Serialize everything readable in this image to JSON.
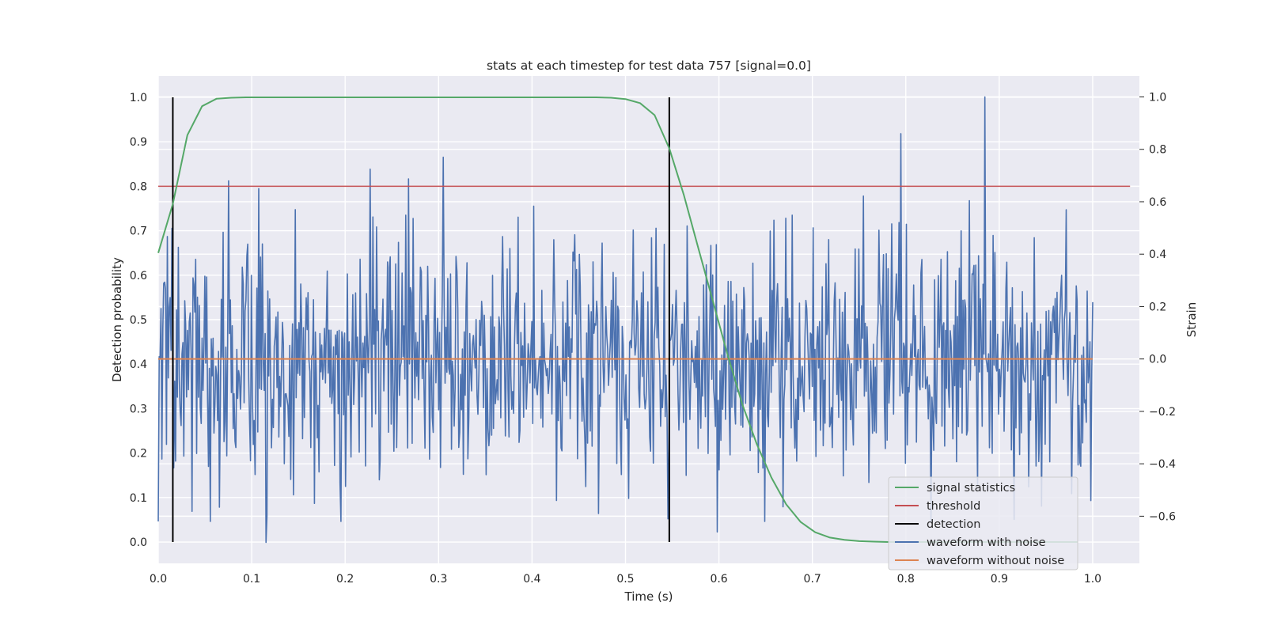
{
  "chart_data": {
    "type": "line",
    "title": "stats at each timestep for test data 757 [signal=0.0]",
    "xlabel": "Time (s)",
    "ylabel": "Detection probability",
    "y2label": "Strain",
    "xlim": [
      0.0,
      1.05
    ],
    "ylim": [
      -0.048,
      1.048
    ],
    "y2lim": [
      -0.78,
      1.08
    ],
    "xticks": [
      0.0,
      0.1,
      0.2,
      0.3,
      0.4,
      0.5,
      0.6,
      0.7,
      0.8,
      0.9,
      1.0
    ],
    "xtick_labels": [
      "0.0",
      "0.1",
      "0.2",
      "0.3",
      "0.4",
      "0.5",
      "0.6",
      "0.7",
      "0.8",
      "0.9",
      "1.0"
    ],
    "yticks": [
      0.0,
      0.1,
      0.2,
      0.3,
      0.4,
      0.5,
      0.6,
      0.7,
      0.8,
      0.9,
      1.0
    ],
    "ytick_labels": [
      "0.0",
      "0.1",
      "0.2",
      "0.3",
      "0.4",
      "0.5",
      "0.6",
      "0.7",
      "0.8",
      "0.9",
      "1.0"
    ],
    "y2ticks": [
      -0.6,
      -0.4,
      -0.2,
      0.0,
      0.2,
      0.4,
      0.6,
      0.8,
      1.0
    ],
    "y2tick_labels": [
      "−0.6",
      "−0.4",
      "−0.2",
      "0.0",
      "0.2",
      "0.4",
      "0.6",
      "0.8",
      "1.0"
    ],
    "grid": true,
    "legend_position": "bottom-right",
    "series": [
      {
        "name": "signal statistics",
        "axis": "left",
        "color": "#55a868",
        "x": [
          0.0,
          0.0156,
          0.0312,
          0.0469,
          0.0625,
          0.0781,
          0.0938,
          0.1094,
          0.125,
          0.1406,
          0.1562,
          0.1719,
          0.1875,
          0.2031,
          0.2188,
          0.2344,
          0.25,
          0.2656,
          0.2812,
          0.2969,
          0.3125,
          0.3281,
          0.3438,
          0.3594,
          0.375,
          0.3906,
          0.4062,
          0.4219,
          0.4375,
          0.4531,
          0.4688,
          0.4844,
          0.5,
          0.5156,
          0.5312,
          0.5469,
          0.5625,
          0.5781,
          0.5938,
          0.6094,
          0.625,
          0.6406,
          0.6562,
          0.6719,
          0.6875,
          0.7031,
          0.7188,
          0.7344,
          0.75,
          0.7656,
          0.7812,
          0.7969,
          0.8125,
          0.8281,
          0.8438,
          0.8594,
          0.875,
          0.8906,
          0.9062,
          0.9219,
          0.9375,
          0.9531,
          0.9688,
          0.9844
        ],
        "y": [
          0.65,
          0.76,
          0.915,
          0.98,
          0.997,
          0.999,
          1.0,
          1.0,
          1.0,
          1.0,
          1.0,
          1.0,
          1.0,
          1.0,
          1.0,
          1.0,
          1.0,
          1.0,
          1.0,
          1.0,
          1.0,
          1.0,
          1.0,
          1.0,
          1.0,
          1.0,
          1.0,
          1.0,
          1.0,
          1.0,
          1.0,
          0.999,
          0.996,
          0.987,
          0.96,
          0.885,
          0.78,
          0.66,
          0.54,
          0.42,
          0.31,
          0.22,
          0.145,
          0.085,
          0.045,
          0.022,
          0.01,
          0.005,
          0.002,
          0.001,
          0.0,
          0.0,
          0.0,
          0.0,
          0.0,
          0.0,
          0.0,
          0.0,
          0.0,
          0.0,
          0.0,
          0.0,
          0.0,
          0.0
        ]
      },
      {
        "name": "threshold",
        "axis": "left",
        "color": "#c44e52",
        "x": [
          0.0,
          1.04
        ],
        "y": [
          0.8,
          0.8
        ]
      },
      {
        "name": "detection",
        "axis": "left",
        "color": "#000000",
        "type": "vlines",
        "x": [
          0.0156,
          0.5469
        ],
        "ymin": 0.0,
        "ymax": 1.0
      },
      {
        "name": "waveform with noise",
        "axis": "right",
        "color": "#4c72b0",
        "style": "noise",
        "x_start": 0.0,
        "x_end": 1.0,
        "n_points": 1024,
        "mean": 0.0,
        "std": 0.24,
        "min": -0.7,
        "max": 1.0,
        "peaks": [
          {
            "x": 0.075,
            "y": 0.68
          },
          {
            "x": 0.108,
            "y": 0.65
          },
          {
            "x": 0.115,
            "y": -0.7
          },
          {
            "x": 0.305,
            "y": 0.77
          },
          {
            "x": 0.795,
            "y": 0.86
          },
          {
            "x": 0.885,
            "y": 1.0
          },
          {
            "x": 0.598,
            "y": -0.66
          }
        ]
      },
      {
        "name": "waveform without noise",
        "axis": "right",
        "color": "#dd8452",
        "x": [
          0.0,
          1.0
        ],
        "y": [
          0.0,
          0.0
        ]
      }
    ]
  }
}
